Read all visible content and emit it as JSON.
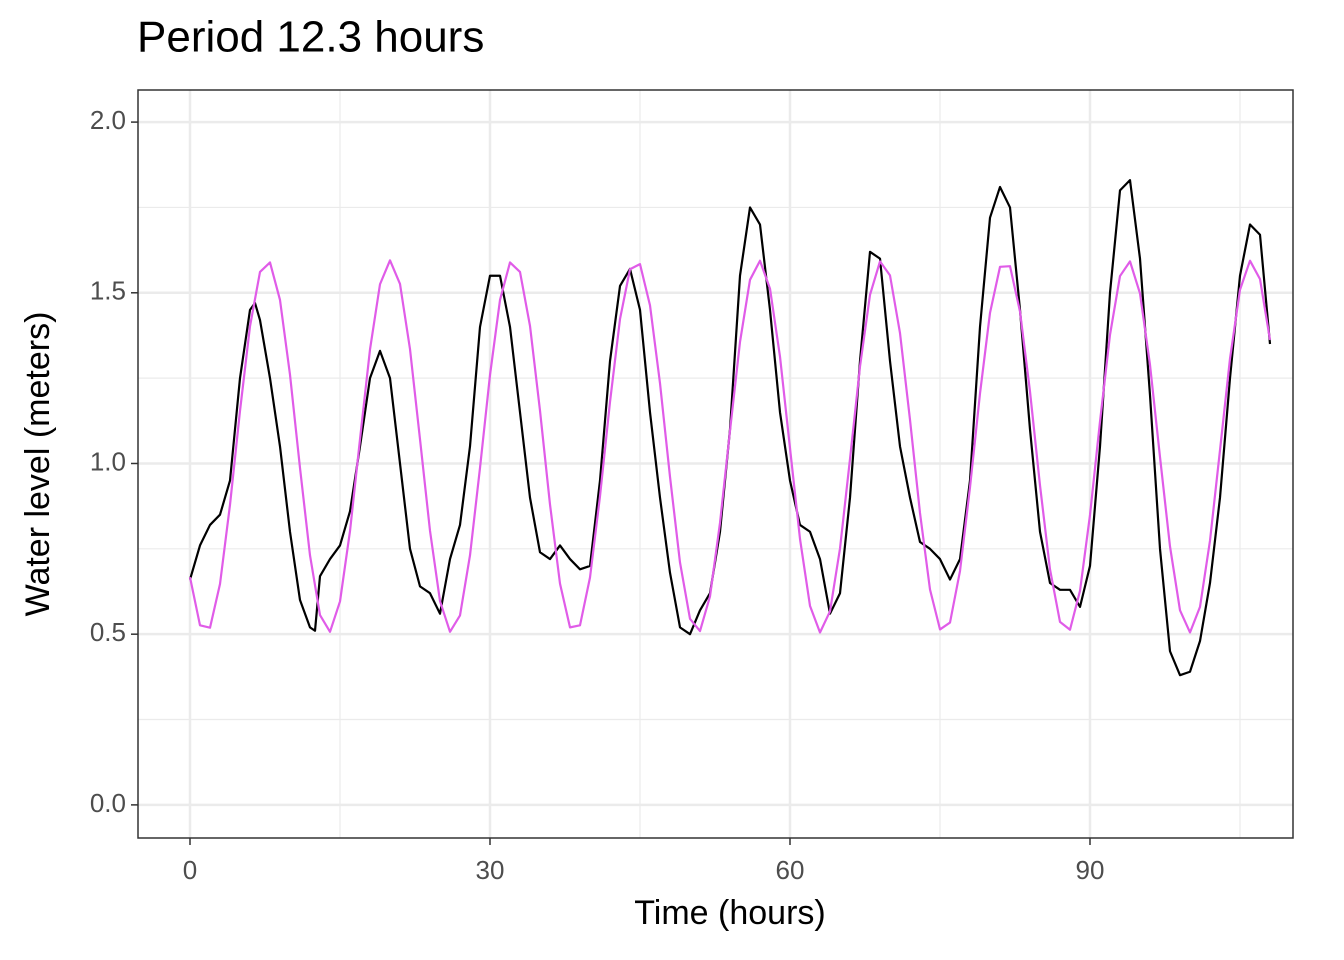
{
  "chart_data": {
    "type": "line",
    "title": "Period 12.3 hours",
    "x_label": "Time (hours)",
    "y_label": "Water level (meters)",
    "xlim": [
      -5.2,
      110.3
    ],
    "ylim": [
      -0.097,
      2.094
    ],
    "xticks": [
      0,
      30,
      60,
      90
    ],
    "yticks": [
      {
        "value": 0,
        "label": "0.0"
      },
      {
        "value": 0.5,
        "label": "0.5"
      },
      {
        "value": 1,
        "label": "1.0"
      },
      {
        "value": 1.5,
        "label": "1.5"
      },
      {
        "value": 2,
        "label": "2.0"
      }
    ],
    "x_minor_grid": [
      15,
      45,
      75,
      105
    ],
    "y_minor_grid": [
      0.25,
      0.75,
      1.25,
      1.75
    ],
    "grid": true,
    "series": [
      {
        "color": "#000000",
        "x": [
          0,
          1,
          2,
          3,
          4,
          5,
          6,
          6.5,
          7,
          8,
          9,
          10,
          11,
          12,
          12.5,
          13,
          14,
          15,
          16,
          17,
          18,
          19,
          20,
          21,
          22,
          23,
          24,
          25,
          26,
          27,
          28,
          29,
          30,
          31,
          32,
          33,
          34,
          35,
          36,
          37,
          38,
          39,
          40,
          41,
          42,
          43,
          44,
          45,
          46,
          47,
          48,
          49,
          50,
          51,
          52,
          53,
          54,
          55,
          56,
          57,
          58,
          59,
          60,
          61,
          62,
          63,
          64,
          65,
          66,
          67,
          68,
          69,
          70,
          71,
          72,
          73,
          74,
          75,
          76,
          77,
          78,
          79,
          80,
          81,
          82,
          83,
          84,
          85,
          86,
          87,
          88,
          89,
          90,
          91,
          92,
          93,
          94,
          95,
          96,
          97,
          98,
          99,
          100,
          101,
          102,
          103,
          104,
          105,
          106,
          107,
          108
        ],
        "values": [
          0.66,
          0.76,
          0.82,
          0.85,
          0.95,
          1.25,
          1.45,
          1.47,
          1.42,
          1.25,
          1.05,
          0.8,
          0.6,
          0.52,
          0.51,
          0.67,
          0.72,
          0.76,
          0.86,
          1.05,
          1.25,
          1.33,
          1.25,
          1.0,
          0.75,
          0.64,
          0.62,
          0.56,
          0.72,
          0.82,
          1.05,
          1.4,
          1.55,
          1.55,
          1.4,
          1.15,
          0.9,
          0.74,
          0.72,
          0.76,
          0.72,
          0.69,
          0.7,
          0.95,
          1.3,
          1.52,
          1.57,
          1.45,
          1.15,
          0.9,
          0.68,
          0.52,
          0.5,
          0.57,
          0.62,
          0.8,
          1.1,
          1.55,
          1.75,
          1.7,
          1.45,
          1.15,
          0.95,
          0.82,
          0.8,
          0.72,
          0.56,
          0.62,
          0.9,
          1.3,
          1.62,
          1.6,
          1.3,
          1.05,
          0.9,
          0.77,
          0.75,
          0.72,
          0.66,
          0.72,
          0.95,
          1.4,
          1.72,
          1.81,
          1.75,
          1.45,
          1.1,
          0.8,
          0.65,
          0.63,
          0.63,
          0.58,
          0.7,
          1.05,
          1.5,
          1.8,
          1.83,
          1.6,
          1.2,
          0.75,
          0.45,
          0.38,
          0.39,
          0.48,
          0.65,
          0.9,
          1.25,
          1.55,
          1.7,
          1.67,
          1.35
        ]
      },
      {
        "color": "#e05ce8",
        "x": [
          0,
          1,
          2,
          3,
          4,
          5,
          6,
          7,
          8,
          9,
          10,
          11,
          12,
          13,
          14,
          15,
          16,
          17,
          18,
          19,
          20,
          21,
          22,
          23,
          24,
          25,
          26,
          27,
          28,
          29,
          30,
          31,
          32,
          33,
          34,
          35,
          36,
          37,
          38,
          39,
          40,
          41,
          42,
          43,
          44,
          45,
          46,
          47,
          48,
          49,
          50,
          51,
          52,
          53,
          54,
          55,
          56,
          57,
          58,
          59,
          60,
          61,
          62,
          63,
          64,
          65,
          66,
          67,
          68,
          69,
          70,
          71,
          72,
          73,
          74,
          75,
          76,
          77,
          78,
          79,
          80,
          81,
          82,
          83,
          84,
          85,
          86,
          87,
          88,
          89,
          90,
          91,
          92,
          93,
          94,
          95,
          96,
          97,
          98,
          99,
          100,
          101,
          102,
          103,
          104,
          105,
          106,
          107,
          108
        ],
        "values": [
          0.667,
          0.526,
          0.519,
          0.647,
          0.879,
          1.154,
          1.402,
          1.561,
          1.589,
          1.479,
          1.26,
          0.987,
          0.731,
          0.556,
          0.507,
          0.596,
          0.802,
          1.071,
          1.334,
          1.525,
          1.595,
          1.526,
          1.335,
          1.071,
          0.803,
          0.597,
          0.507,
          0.555,
          0.731,
          0.987,
          1.259,
          1.479,
          1.589,
          1.561,
          1.403,
          1.155,
          0.88,
          0.648,
          0.52,
          0.526,
          0.666,
          0.904,
          1.18,
          1.423,
          1.569,
          1.584,
          1.463,
          1.235,
          0.961,
          0.71,
          0.545,
          0.509,
          0.611,
          0.826,
          1.096,
          1.356,
          1.538,
          1.594,
          1.512,
          1.313,
          1.045,
          0.779,
          0.583,
          0.505,
          0.567,
          0.751,
          1.013,
          1.284,
          1.494,
          1.592,
          1.551,
          1.382,
          1.128,
          0.855,
          0.631,
          0.514,
          0.534,
          0.685,
          0.93,
          1.205,
          1.441,
          1.576,
          1.578,
          1.445,
          1.211,
          0.936,
          0.69,
          0.536,
          0.513,
          0.627,
          0.849,
          1.123,
          1.377,
          1.549,
          1.592,
          1.498,
          1.289,
          1.019,
          0.757,
          0.57,
          0.505,
          0.58,
          0.774,
          1.039,
          1.307,
          1.509,
          1.594,
          1.54,
          1.362
        ]
      }
    ]
  }
}
